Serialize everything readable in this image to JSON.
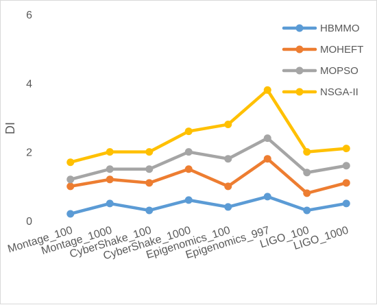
{
  "chart_data": {
    "type": "line",
    "title": "",
    "xlabel": "",
    "ylabel": "DI",
    "ylim": [
      0,
      6
    ],
    "yticks": [
      0,
      2,
      4,
      6
    ],
    "grid": false,
    "legend_position": "top-right",
    "categories": [
      "Montage_100",
      "Montage_1000",
      "CyberShake_100",
      "CyberShake_1000",
      "Epigenomics_100",
      "Epigenomics_997",
      "LIGO_100",
      "LIGO_1000"
    ],
    "series": [
      {
        "name": "HBMMO",
        "color": "#5b9bd5",
        "values": [
          0.2,
          0.5,
          0.3,
          0.6,
          0.4,
          0.7,
          0.3,
          0.5
        ]
      },
      {
        "name": "MOHEFT",
        "color": "#ed7d31",
        "values": [
          1.0,
          1.2,
          1.1,
          1.5,
          1.0,
          1.8,
          0.8,
          1.1
        ]
      },
      {
        "name": "MOPSO",
        "color": "#a5a5a5",
        "values": [
          1.2,
          1.5,
          1.5,
          2.0,
          1.8,
          2.4,
          1.4,
          1.6
        ]
      },
      {
        "name": "NSGA-II",
        "color": "#ffc000",
        "values": [
          1.7,
          2.0,
          2.0,
          2.6,
          2.8,
          3.8,
          2.0,
          2.1
        ]
      }
    ]
  }
}
